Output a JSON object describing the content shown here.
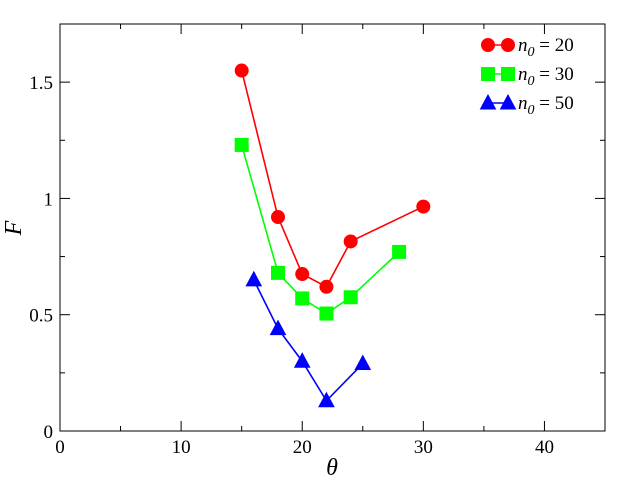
{
  "chart_data": {
    "type": "line",
    "xlabel": "θ",
    "ylabel": "F",
    "xlim": [
      0,
      45
    ],
    "ylim": [
      0,
      1.75
    ],
    "x_ticks": [
      0,
      10,
      20,
      30,
      40
    ],
    "x_tick_labels": [
      "0",
      "10",
      "20",
      "30",
      "40"
    ],
    "y_ticks": [
      0,
      0.5,
      1,
      1.5
    ],
    "y_tick_labels": [
      "0",
      "0.5",
      "1",
      "1.5"
    ],
    "x_minor_ticks": [
      5,
      15,
      25,
      35
    ],
    "y_minor_ticks": [
      0.25,
      0.75,
      1.25
    ],
    "grid": false,
    "legend_position": "top-right",
    "series": [
      {
        "name_var": "n",
        "name_sub": "0",
        "name_rest": " = 20",
        "color": "#ff0000",
        "marker": "circle",
        "x": [
          15,
          18,
          20,
          22,
          24,
          30
        ],
        "y": [
          1.55,
          0.92,
          0.675,
          0.62,
          0.815,
          0.965
        ]
      },
      {
        "name_var": "n",
        "name_sub": "0",
        "name_rest": " = 30",
        "color": "#00ff00",
        "marker": "square",
        "x": [
          15,
          18,
          20,
          22,
          24,
          28
        ],
        "y": [
          1.23,
          0.68,
          0.57,
          0.505,
          0.575,
          0.77
        ]
      },
      {
        "name_var": "n",
        "name_sub": "0",
        "name_rest": " = 50",
        "color": "#0000ff",
        "marker": "triangle",
        "x": [
          16,
          18,
          20,
          22,
          25
        ],
        "y": [
          0.65,
          0.44,
          0.3,
          0.13,
          0.29
        ]
      }
    ]
  }
}
